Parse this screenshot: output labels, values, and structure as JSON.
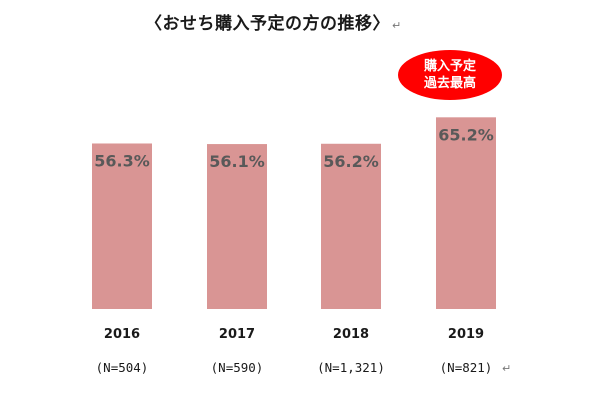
{
  "title": "〈おせち購入予定の方の推移〉",
  "return_mark": "↵",
  "badge": {
    "lines": [
      "購入予定",
      "過去最高"
    ],
    "color": "#ff0000"
  },
  "chart_data": {
    "type": "bar",
    "categories": [
      "2016",
      "2017",
      "2018",
      "2019"
    ],
    "sample_sizes": [
      "(N=504)",
      "(N=590)",
      "(N=1,321)",
      "(N=821)"
    ],
    "values": [
      56.3,
      56.1,
      56.2,
      65.2
    ],
    "data_labels": [
      "56.3%",
      "56.1%",
      "56.2%",
      "65.2%"
    ],
    "bar_color": "#d99594",
    "ylim": [
      0,
      100
    ],
    "grid": false,
    "xlabel": "",
    "ylabel": ""
  }
}
